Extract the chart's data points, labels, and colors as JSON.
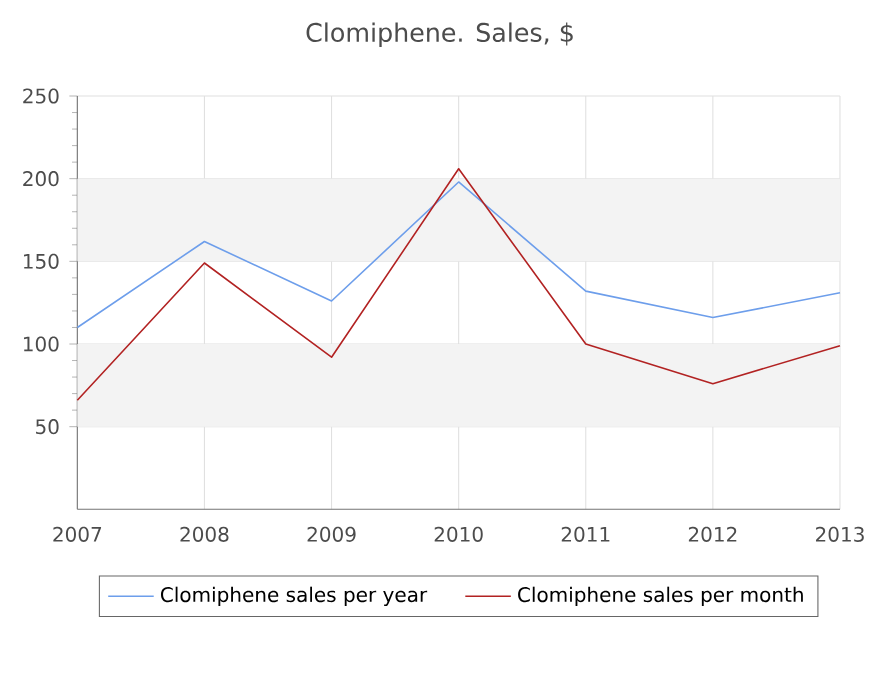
{
  "chart_data": {
    "type": "line",
    "title": "Clomiphene. Sales, $",
    "x": [
      2007,
      2008,
      2009,
      2010,
      2011,
      2012,
      2013
    ],
    "series": [
      {
        "name": "Clomiphene sales per year",
        "color": "#6d9eeb",
        "values": [
          110,
          162,
          126,
          198,
          132,
          116,
          131
        ]
      },
      {
        "name": "Clomiphene sales per month",
        "color": "#b22222",
        "values": [
          66,
          149,
          92,
          206,
          100,
          76,
          99
        ]
      }
    ],
    "xlim": [
      2007,
      2013
    ],
    "xticks": [
      2007,
      2008,
      2009,
      2010,
      2011,
      2012,
      2013
    ],
    "ylim": [
      0,
      250
    ],
    "yticks": [
      50,
      100,
      150,
      200,
      250
    ],
    "bands": [
      {
        "axis": "y",
        "from": 50,
        "to": 100,
        "color": "#f3f3f3"
      },
      {
        "axis": "y",
        "from": 150,
        "to": 200,
        "color": "#f3f3f3"
      }
    ],
    "grid": true,
    "legend": "bottom",
    "marker": "none",
    "line_style": "solid"
  }
}
